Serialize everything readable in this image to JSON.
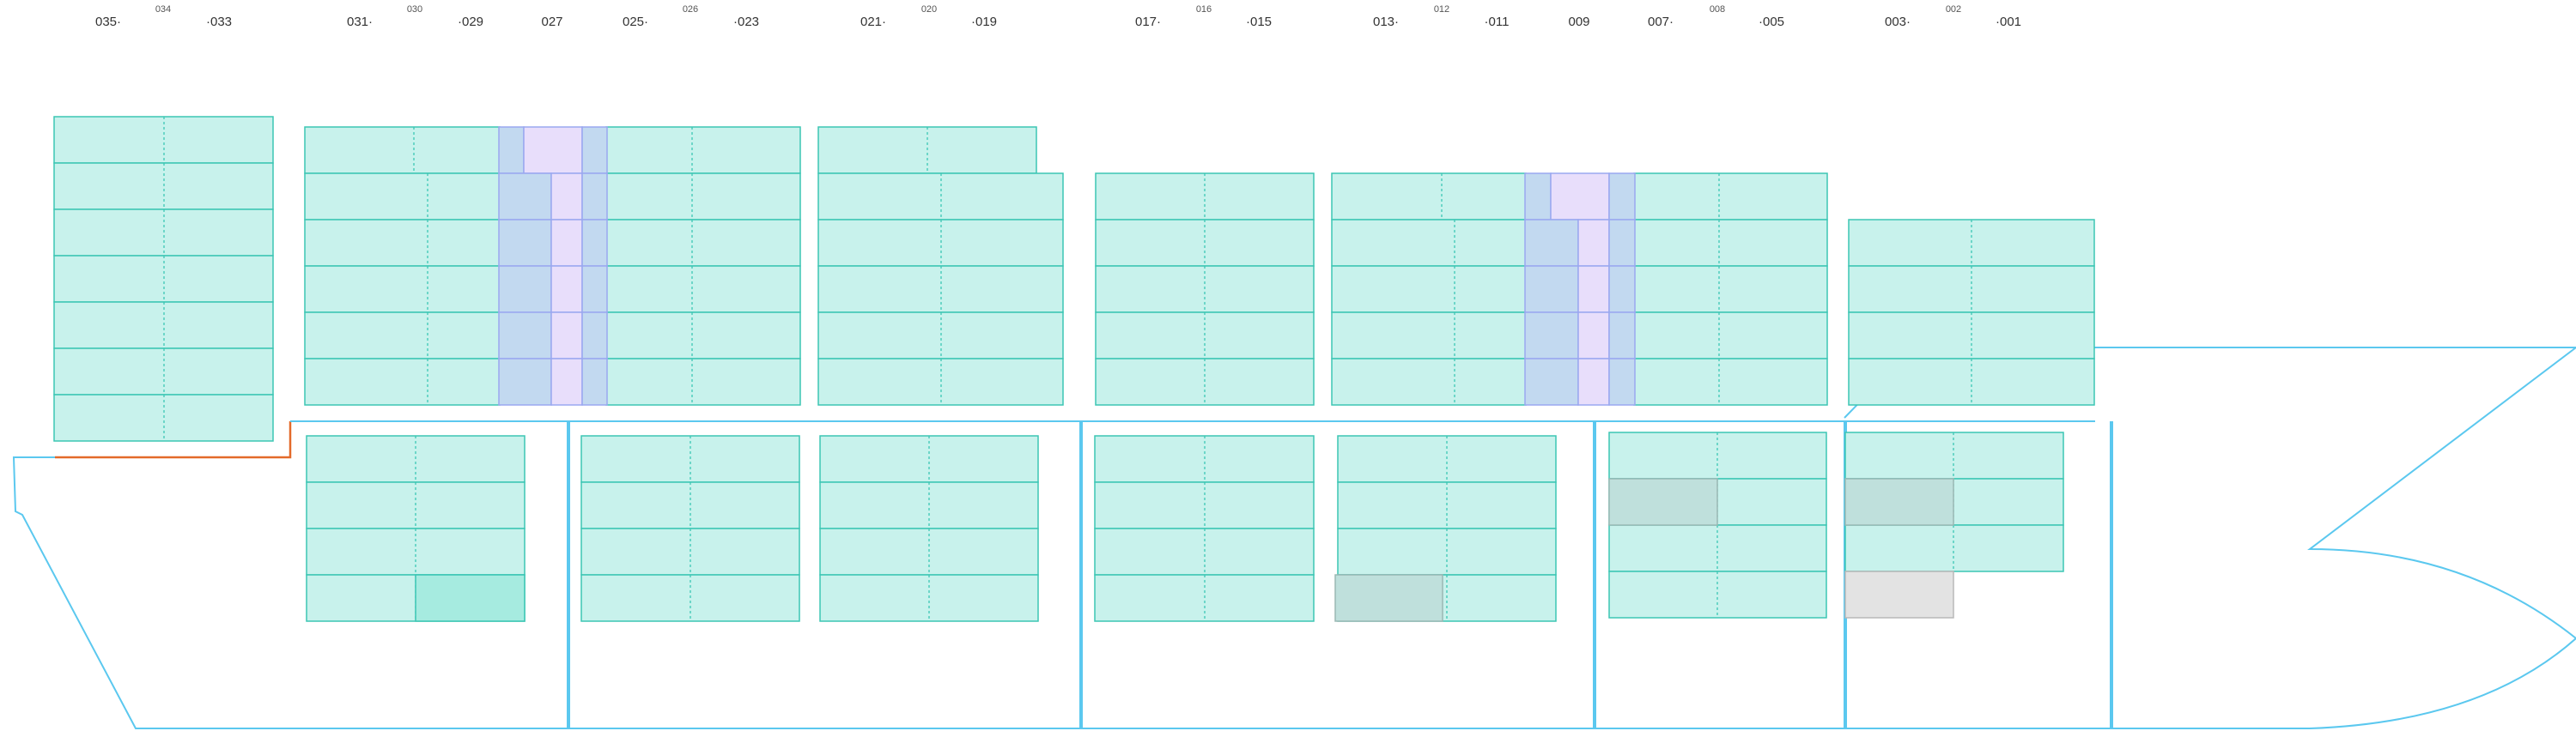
{
  "bay_labels": {
    "main": [
      "035",
      "033",
      "031",
      "029",
      "027",
      "025",
      "023",
      "021",
      "019",
      "017",
      "015",
      "013",
      "011",
      "009",
      "007",
      "005",
      "003",
      "001"
    ],
    "sub": [
      "034",
      "030",
      "026",
      "020",
      "016",
      "012",
      "008",
      "002"
    ]
  },
  "colors": {
    "cell_fill": "#c8f2ec",
    "cell_stroke": "#3cc6b4",
    "divider": "#3cc6b4",
    "hull": "#5bc8ef",
    "reefer_fill": "#c2d9f0",
    "reefer_stroke": "#9aa8f0",
    "reefer_middle_fill": "#e8defb",
    "occupied_fill": "#bfe0dc",
    "occupied_stroke": "#9bb8b4",
    "highlight_fill": "#a6ebe0",
    "empty_fill": "#e3e3e3",
    "empty_stroke": "#b8b8b8",
    "accent_line": "#e36a2a"
  }
}
